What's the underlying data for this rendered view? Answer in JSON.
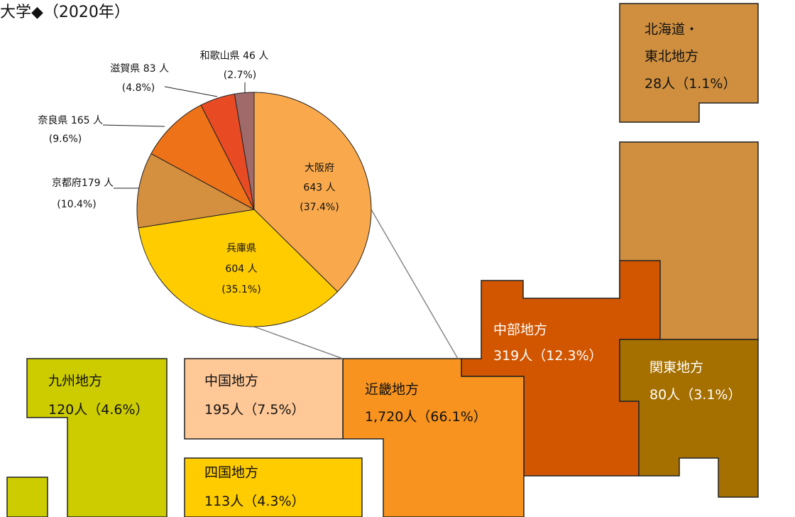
{
  "chart_data": {
    "type": "pie",
    "title": "大学◆（2020年）",
    "categories": [
      "大阪府",
      "兵庫県",
      "京都府",
      "奈良県",
      "滋賀県",
      "和歌山県"
    ],
    "values": [
      643,
      604,
      179,
      165,
      83,
      46
    ],
    "value_labels": [
      "643 人",
      "604 人",
      "179 人",
      " 165 人",
      " 83 人",
      " 46 人"
    ],
    "percent_labels": [
      "(37.4%)",
      "(35.1%)",
      "(10.4%)",
      "(9.6%)",
      "(4.8%)",
      "(2.7%)"
    ],
    "colors": [
      "#f9a94b",
      "#ffcc00",
      "#d4903f",
      "#ed7218",
      "#e84b24",
      "#a06a6a"
    ]
  },
  "regions": [
    {
      "name": [
        "北海道・",
        "東北地方"
      ],
      "count": "28人",
      "share": "（1.1%）"
    },
    {
      "name": [
        "関東地方"
      ],
      "count": "80人",
      "share": "（3.1%）"
    },
    {
      "name": [
        "中部地方"
      ],
      "count": "319人",
      "share": "（12.3%）"
    },
    {
      "name": [
        "近畿地方"
      ],
      "count": "1,720人",
      "share": "（66.1%）"
    },
    {
      "name": [
        "中国地方"
      ],
      "count": "195人",
      "share": "（7.5%）"
    },
    {
      "name": [
        "四国地方"
      ],
      "count": "113人",
      "share": "（4.3%）"
    },
    {
      "name": [
        "九州地方"
      ],
      "count": "120人",
      "share": "（4.6%）"
    }
  ]
}
